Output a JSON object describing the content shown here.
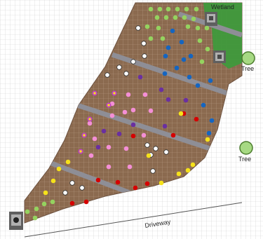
{
  "labels": {
    "wetland": "Wetland",
    "tree_1": "Tree",
    "tree_2": "Tree",
    "driveway": "Driveway"
  },
  "colors": {
    "grid_line": "#c9c9c9",
    "soil": "#8b6a4f",
    "path": "#8e8e96",
    "wetland": "#3f9a3c",
    "tree_fill": "#a6d983",
    "tree_stroke": "#4c7c2e",
    "rock": "#6f6f6f",
    "plant_light_green": "#95d35f",
    "plant_blue": "#1565c0",
    "plant_white": "#ffffff",
    "plant_purple": "#6a2fa0",
    "plant_pink": "#f48fd6",
    "plant_red": "#d50000",
    "plant_yellow": "#f6e21a",
    "plant_magenta_ring": "#c040c8"
  },
  "legend_note": ""
}
